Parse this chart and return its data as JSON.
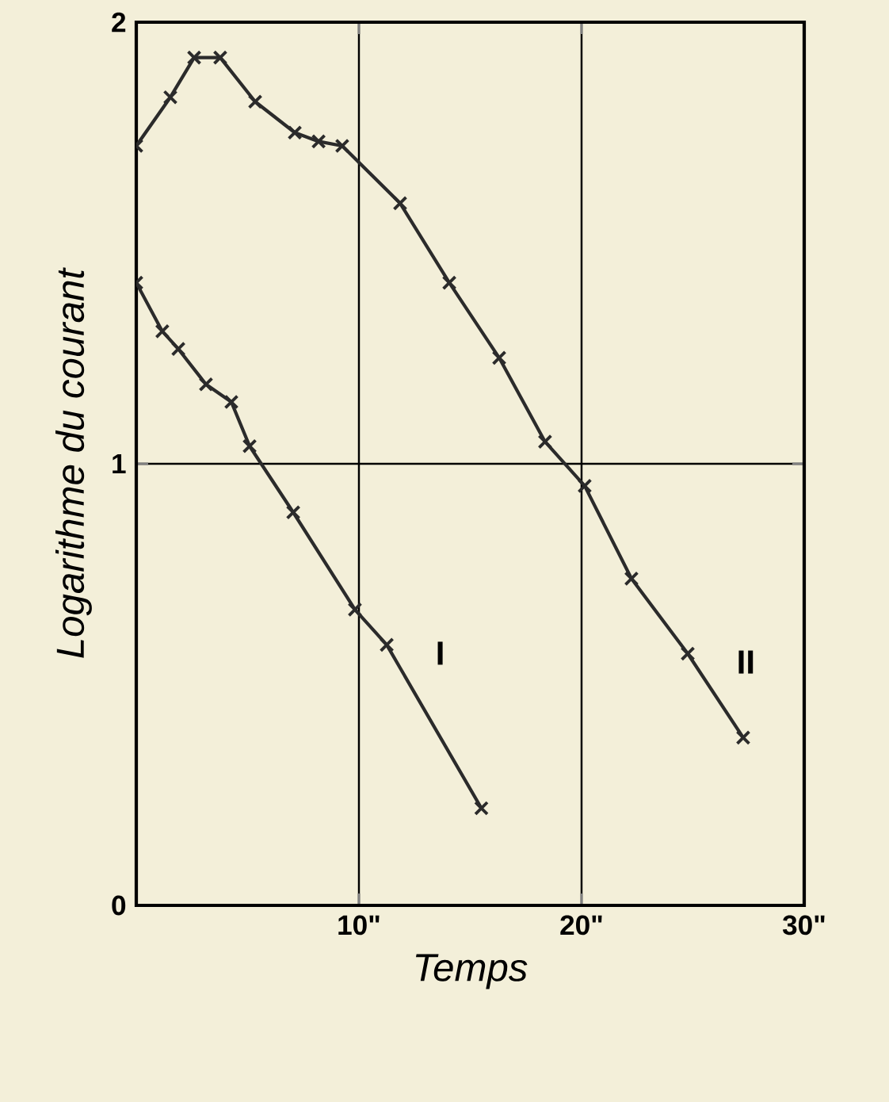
{
  "chart_data": {
    "type": "line",
    "xlabel": "Temps",
    "ylabel": "Logarithme du courant",
    "xlim": [
      0,
      30
    ],
    "ylim": [
      0,
      2
    ],
    "xticks": [
      {
        "value": 0,
        "label": null
      },
      {
        "value": 10,
        "label": "10\""
      },
      {
        "value": 20,
        "label": "20\""
      },
      {
        "value": 30,
        "label": "30\""
      }
    ],
    "yticks": [
      0,
      1,
      2
    ],
    "grid": true,
    "marker": "cross",
    "legend": "right",
    "series": [
      {
        "name": "I",
        "color": "#2b2b2b",
        "x": [
          0,
          1.17,
          1.89,
          3.13,
          4.27,
          5.09,
          7.05,
          9.82,
          11.25,
          15.5
        ],
        "values": [
          1.41,
          1.3,
          1.26,
          1.18,
          1.14,
          1.04,
          0.89,
          0.67,
          0.59,
          0.22
        ]
      },
      {
        "name": "II",
        "color": "#2b2b2b",
        "x": [
          0,
          1.53,
          2.6,
          3.77,
          5.34,
          7.12,
          8.19,
          9.25,
          11.85,
          14.06,
          16.3,
          18.36,
          20.14,
          22.24,
          24.77,
          27.26
        ],
        "values": [
          1.72,
          1.83,
          1.92,
          1.92,
          1.82,
          1.75,
          1.73,
          1.72,
          1.59,
          1.41,
          1.24,
          1.05,
          0.95,
          0.74,
          0.57,
          0.38
        ]
      }
    ]
  }
}
